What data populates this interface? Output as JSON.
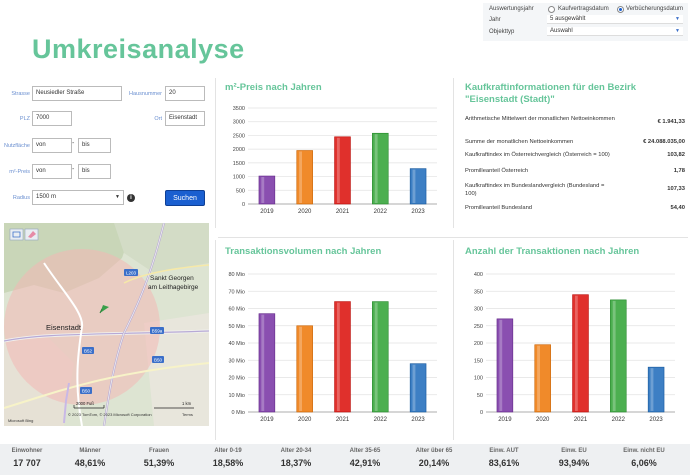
{
  "page_title": "Umkreisanalyse",
  "settings": {
    "year_label": "Auswertungsjahr",
    "opt1": "Kaufvertragsdatum",
    "opt2": "Verbücherungsdatum",
    "selected_option": "Verbücherungsdatum",
    "jahr_label": "Jahr",
    "jahr_value": "5 ausgewählt",
    "objekt_label": "Objekttyp",
    "objekt_value": "Auswahl"
  },
  "form": {
    "strasse_label": "Strasse",
    "strasse_value": "Neusiedler Straße",
    "hausnummer_label": "Hausnummer",
    "hausnummer_value": "20",
    "plz_label": "PLZ",
    "plz_value": "7000",
    "ort_label": "Ort",
    "ort_value": "Eisenstadt",
    "nutzflaeche_label": "Nutzfläche",
    "nf_von": "von",
    "nf_bis": "bis",
    "preis_label": "m²-Preis",
    "p_von": "von",
    "p_bis": "bis",
    "radius_label": "Radius",
    "radius_value": "1500 m",
    "search_label": "Suchen",
    "dash": "-"
  },
  "map": {
    "labels": {
      "city": "Eisenstadt",
      "georgen1": "Sankt Georgen",
      "georgen2": "am Leithagebirge",
      "r1": "L203",
      "r2": "B59a",
      "r3": "B52",
      "r4": "B50",
      "r5": "B50",
      "scale1": "2000 Fuß",
      "scale2": "1 km",
      "copyright": "© 2023 TomTom, © 2023 Microsoft Corporation",
      "terms": "Terms",
      "brand": "Microsoft Bing"
    }
  },
  "sections": {
    "preis": "m²-Preis nach Jahren",
    "kaufkraft1": "Kaufkraftinformationen für den Bezirk",
    "kaufkraft2": "\"Eisenstadt (Stadt)\"",
    "volumen": "Transaktionsvolumen nach Jahren",
    "anzahl": "Anzahl der Transaktionen nach Jahren"
  },
  "kaufkraft": [
    {
      "label": "Arithmetische Mittelwert der monatlichen Nettoeinkommen",
      "value": "€ 1.941,33"
    },
    {
      "label": "Summe der monatlichen Nettoeinkommen",
      "value": "€ 24.088.035,00"
    },
    {
      "label": "Kaufkraftindex im Österreichvergleich (Österreich = 100)",
      "value": "103,82"
    },
    {
      "label": "Promilleanteil Österreich",
      "value": "1,78"
    },
    {
      "label": "Kaufkraftindex im Bundeslandvergleich (Bundesland = 100)",
      "value": "107,33"
    },
    {
      "label": "Promilleanteil Bundesland",
      "value": "54,40"
    }
  ],
  "colors": {
    "c2019": "#8a4fb0",
    "c2020": "#f08a2a",
    "c2021": "#e0302c",
    "c2022": "#4caf50",
    "c2023": "#3d7fc4",
    "accent": "#66c59a"
  },
  "chart_data": [
    {
      "type": "bar",
      "title": "m²-Preis nach Jahren",
      "categories": [
        "2019",
        "2020",
        "2021",
        "2022",
        "2023"
      ],
      "values": [
        1020,
        1950,
        2450,
        2580,
        1290
      ],
      "ylim": [
        0,
        3500
      ],
      "yticks": [
        "0",
        "500",
        "1000",
        "1500",
        "2000",
        "2500",
        "3000",
        "3500"
      ],
      "grid": true
    },
    {
      "type": "bar",
      "title": "Transaktionsvolumen nach Jahren",
      "categories": [
        "2019",
        "2020",
        "2021",
        "2022",
        "2023"
      ],
      "values": [
        57,
        50,
        64,
        64,
        28
      ],
      "ylim": [
        0,
        80
      ],
      "yticks": [
        "0 Mio",
        "10 Mio",
        "20 Mio",
        "30 Mio",
        "40 Mio",
        "50 Mio",
        "60 Mio",
        "70 Mio",
        "80 Mio"
      ],
      "grid": true
    },
    {
      "type": "bar",
      "title": "Anzahl der Transaktionen nach Jahren",
      "categories": [
        "2019",
        "2020",
        "2021",
        "2022",
        "2023"
      ],
      "values": [
        270,
        195,
        340,
        325,
        130
      ],
      "ylim": [
        0,
        400
      ],
      "yticks": [
        "0",
        "50",
        "100",
        "150",
        "200",
        "250",
        "300",
        "350",
        "400"
      ],
      "grid": true
    }
  ],
  "stats": [
    {
      "h": "Einwohner",
      "v": "17 707"
    },
    {
      "h": "Männer",
      "v": "48,61%"
    },
    {
      "h": "Frauen",
      "v": "51,39%"
    },
    {
      "h": "Alter 0-19",
      "v": "18,58%"
    },
    {
      "h": "Alter 20-34",
      "v": "18,37%"
    },
    {
      "h": "Alter 35-65",
      "v": "42,91%"
    },
    {
      "h": "Alter über 65",
      "v": "20,14%"
    },
    {
      "h": "Einw. AUT",
      "v": "83,61%"
    },
    {
      "h": "Einw. EU",
      "v": "93,94%"
    },
    {
      "h": "Einw. nicht EU",
      "v": "6,06%"
    }
  ]
}
